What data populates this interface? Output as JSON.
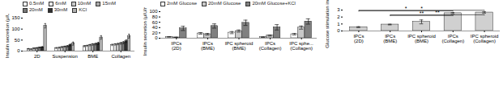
{
  "chart_data": [
    {
      "type": "bar",
      "ylabel": "Insulin secretion (μIU)",
      "categories": [
        "2D",
        "Suspension",
        "BME",
        "Collagen"
      ],
      "series": [
        {
          "name": "0.5mM",
          "color": "#ffffff",
          "values": [
            10,
            14,
            22,
            28
          ],
          "errors": [
            1.5,
            2,
            2.5,
            3
          ]
        },
        {
          "name": "6mM",
          "color": "#e8e8e8",
          "values": [
            8,
            15,
            24,
            30
          ],
          "errors": [
            1.2,
            2,
            2.5,
            3
          ]
        },
        {
          "name": "10mM",
          "color": "#c8c8c8",
          "values": [
            12,
            18,
            27,
            32
          ],
          "errors": [
            1.5,
            2.5,
            3,
            3.5
          ]
        },
        {
          "name": "15mM",
          "color": "#a8a8a8",
          "values": [
            14,
            20,
            30,
            35
          ],
          "errors": [
            1.5,
            2.5,
            3.5,
            4
          ]
        },
        {
          "name": "20mM",
          "color": "#787878",
          "values": [
            16,
            22,
            32,
            38
          ],
          "errors": [
            2,
            3,
            4,
            5
          ]
        },
        {
          "name": "30mM",
          "color": "#303030",
          "values": [
            18,
            28,
            35,
            45
          ],
          "errors": [
            2,
            4,
            5,
            6
          ]
        },
        {
          "name": "KCl",
          "color": "#b0b0b0",
          "values": [
            115,
            34,
            62,
            68
          ],
          "errors": [
            10,
            7,
            8,
            9
          ]
        }
      ],
      "ylim": [
        0,
        150
      ],
      "yticks": [
        0,
        50,
        100,
        150
      ],
      "legend": "upper left"
    },
    {
      "type": "bar",
      "ylabel": "Insulin secretion (μIU/ml/1hr)",
      "categories": [
        "IPCs\n(2D)",
        "IPCs\n(BME)",
        "IPC spheroid\n(BME)",
        "IPCs\n(Collagen)",
        "IPC sphe...\n(Collagen)"
      ],
      "series": [
        {
          "name": "2mM Glucose",
          "color": "#ffffff",
          "values": [
            5,
            18,
            21,
            4,
            15
          ],
          "errors": [
            1,
            3,
            4,
            1,
            3
          ]
        },
        {
          "name": "20mM Glucose",
          "color": "#c8c8c8",
          "values": [
            3,
            15,
            27,
            10,
            40
          ],
          "errors": [
            1,
            3,
            4,
            2,
            6
          ]
        },
        {
          "name": "20mM Glucose+KCl",
          "color": "#808080",
          "values": [
            37,
            46,
            58,
            41,
            63
          ],
          "errors": [
            8,
            8,
            10,
            10,
            10
          ]
        }
      ],
      "ylim": [
        0,
        100
      ],
      "yticks": [
        0,
        20,
        40,
        60,
        80,
        100
      ],
      "legend": "upper left"
    },
    {
      "type": "bar",
      "ylabel": "Glucose stimulation index",
      "categories": [
        "IPCs\n(2D)",
        "IPCs\n(BME)",
        "IPC spheroid\n(BME)",
        "IPCs\n(Collagen)",
        "IPC spheroid\n(Collagen)"
      ],
      "values": [
        0.55,
        0.92,
        1.3,
        2.55,
        2.65
      ],
      "errors": [
        0.07,
        0.05,
        0.28,
        0.1,
        0.1
      ],
      "color": "#d0d0d0",
      "ylim": [
        0,
        3
      ],
      "yticks": [
        0,
        1,
        2,
        3
      ],
      "annotations": [
        {
          "from": "IPCs\n(2D)",
          "to": "IPCs\n(Collagen)",
          "y": 2.88,
          "label": "*"
        },
        {
          "from": "IPCs\n(2D)",
          "to": "IPC spheroid\n(Collagen)",
          "y": 2.97,
          "label": "*"
        },
        {
          "from": "IPCs\n(BME)",
          "to": "IPCs\n(Collagen)",
          "y": 2.22,
          "label": "**"
        },
        {
          "from": "IPCs\n(BME)",
          "to": "IPC spheroid\n(Collagen)",
          "y": 2.32,
          "label": "**"
        }
      ]
    }
  ]
}
